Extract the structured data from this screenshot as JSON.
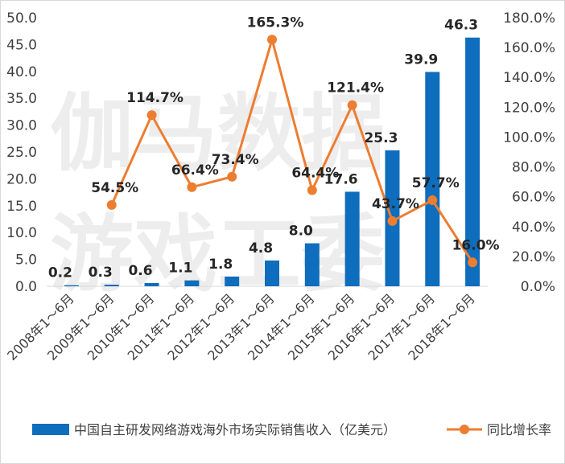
{
  "chart_data": {
    "type": "bar+line",
    "categories": [
      "2008年1～6月",
      "2009年1～6月",
      "2010年1～6月",
      "2011年1～6月",
      "2012年1～6月",
      "2013年1～6月",
      "2014年1～6月",
      "2015年1～6月",
      "2016年1～6月",
      "2017年1～6月",
      "2018年1～6月"
    ],
    "series": [
      {
        "name": "中国自主研发网络游戏海外市场实际销售收入（亿美元）",
        "type": "bar",
        "axis": "left",
        "color": "#0e6dbc",
        "values": [
          0.2,
          0.3,
          0.6,
          1.1,
          1.8,
          4.8,
          8.0,
          17.6,
          25.3,
          39.9,
          46.3
        ],
        "labels": [
          "0.2",
          "0.3",
          "0.6",
          "1.1",
          "1.8",
          "4.8",
          "8.0",
          "17.6",
          "25.3",
          "39.9",
          "46.3"
        ]
      },
      {
        "name": "同比增长率",
        "type": "line",
        "axis": "right",
        "color": "#ed7d31",
        "values": [
          null,
          54.5,
          114.7,
          66.4,
          73.4,
          165.3,
          64.4,
          121.4,
          43.7,
          57.7,
          16.0
        ],
        "labels": [
          "",
          "54.5%",
          "114.7%",
          "66.4%",
          "73.4%",
          "165.3%",
          "64.4%",
          "121.4%",
          "43.7%",
          "57.7%",
          "16.0%"
        ]
      }
    ],
    "y_left": {
      "min": 0,
      "max": 50,
      "step": 5,
      "ticks": [
        "0.0",
        "5.0",
        "10.0",
        "15.0",
        "20.0",
        "25.0",
        "30.0",
        "35.0",
        "40.0",
        "45.0",
        "50.0"
      ]
    },
    "y_right": {
      "min": 0,
      "max": 180,
      "step": 20,
      "ticks": [
        "0.0%",
        "20.0%",
        "40.0%",
        "60.0%",
        "80.0%",
        "100.0%",
        "120.0%",
        "140.0%",
        "160.0%",
        "180.0%"
      ]
    },
    "grid": false,
    "legend_position": "bottom"
  },
  "watermark": {
    "line1": "伽马数据",
    "line2": "游戏工委"
  }
}
